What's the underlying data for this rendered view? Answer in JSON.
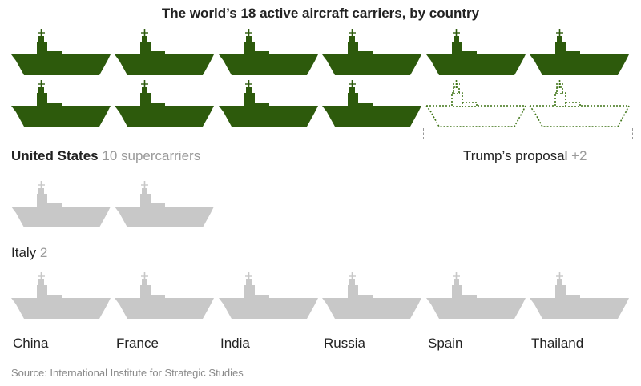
{
  "title": "The world’s 18 active aircraft carriers, by country",
  "source": "Source: International Institute for Strategic Studies",
  "colors": {
    "us": "#2d5a0c",
    "other": "#c8c8c8",
    "proposal_outline": "#3f7417"
  },
  "groups": {
    "us": {
      "name": "United States",
      "count_text": "10 supercarriers"
    },
    "proposal": {
      "name": "Trump’s proposal",
      "count_text": "+2"
    },
    "italy": {
      "name": "Italy",
      "count_text": "2"
    }
  },
  "singles": [
    "China",
    "France",
    "India",
    "Russia",
    "Spain",
    "Thailand"
  ],
  "chart_data": {
    "type": "pictogram",
    "title": "The world’s 18 active aircraft carriers, by country",
    "unit": "1 icon = 1 aircraft carrier",
    "categories": [
      "United States",
      "Italy",
      "China",
      "France",
      "India",
      "Russia",
      "Spain",
      "Thailand"
    ],
    "values": [
      10,
      2,
      1,
      1,
      1,
      1,
      1,
      1
    ],
    "proposed": {
      "label": "Trump’s proposal",
      "value": 2
    }
  }
}
